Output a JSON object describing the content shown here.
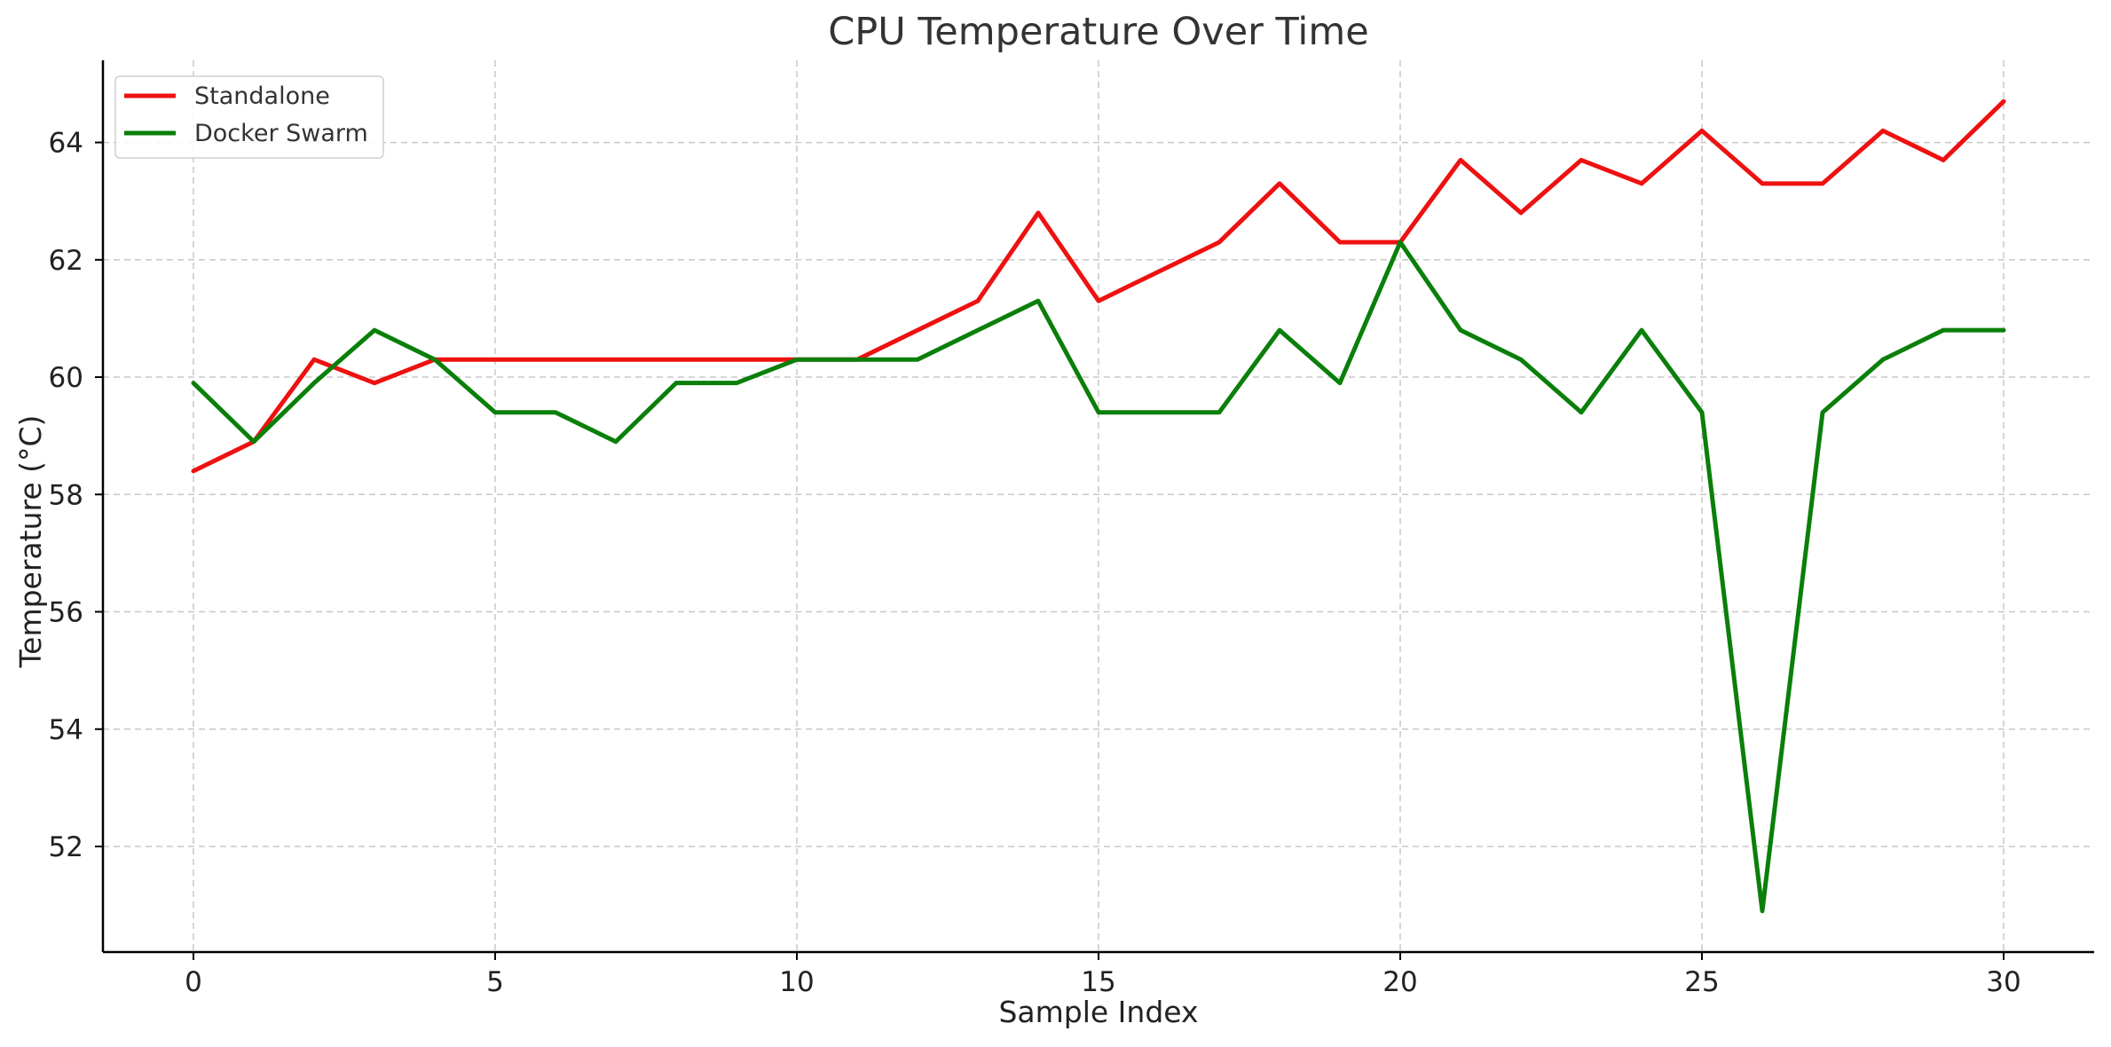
{
  "chart_data": {
    "type": "line",
    "title": "CPU Temperature Over Time",
    "xlabel": "Sample Index",
    "ylabel": "Temperature (°C)",
    "xlim": [
      -1.5,
      31.5
    ],
    "ylim": [
      50.2,
      65.4
    ],
    "x_ticks": [
      0,
      5,
      10,
      15,
      20,
      25,
      30
    ],
    "y_ticks": [
      52,
      54,
      56,
      58,
      60,
      62,
      64
    ],
    "grid": true,
    "legend_position": "top-left",
    "x": [
      0,
      1,
      2,
      3,
      4,
      5,
      6,
      7,
      8,
      9,
      10,
      11,
      12,
      13,
      14,
      15,
      16,
      17,
      18,
      19,
      20,
      21,
      22,
      23,
      24,
      25,
      26,
      27,
      28,
      29,
      30
    ],
    "series": [
      {
        "name": "Standalone",
        "color": "#ee1111",
        "values": [
          58.4,
          58.9,
          60.3,
          59.9,
          60.3,
          60.3,
          60.3,
          60.3,
          60.3,
          60.3,
          60.3,
          60.3,
          60.8,
          61.3,
          62.8,
          61.3,
          61.8,
          62.3,
          63.3,
          62.3,
          62.3,
          63.7,
          62.8,
          63.7,
          63.3,
          64.2,
          63.3,
          63.3,
          64.2,
          63.7,
          64.7
        ]
      },
      {
        "name": "Docker Swarm",
        "color": "#0a7f0a",
        "values": [
          59.9,
          58.9,
          59.9,
          60.8,
          60.3,
          59.4,
          59.4,
          58.9,
          59.9,
          59.9,
          60.3,
          60.3,
          60.3,
          60.8,
          61.3,
          59.4,
          59.4,
          59.4,
          60.8,
          59.9,
          62.3,
          60.8,
          60.3,
          59.4,
          60.8,
          59.4,
          50.9,
          59.4,
          60.3,
          60.8,
          60.8
        ]
      }
    ]
  }
}
